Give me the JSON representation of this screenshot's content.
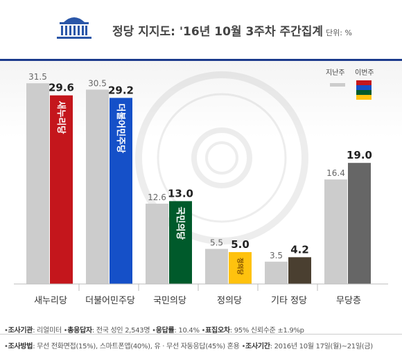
{
  "header": {
    "title": "정당 지지도: '16년 10월 3주차 주간집계",
    "unit": "단위: %",
    "logo_icon": "national-assembly-icon"
  },
  "watermark_icon": "national-assembly-seal-icon",
  "legend": {
    "previous_label": "지난주",
    "current_label": "이번주",
    "previous_color": "#cccccc",
    "current_colors": [
      "#c4161c",
      "#1550c8",
      "#005a2b",
      "#ffc20e",
      "#4a3f30",
      "#666666"
    ]
  },
  "chart_data": {
    "type": "bar",
    "title": "정당 지지도: '16년 10월 3주차 주간집계",
    "unit": "단위: %",
    "categories": [
      "새누리당",
      "더불어민주당",
      "국민의당",
      "정의당",
      "기타 정당",
      "무당층"
    ],
    "series": [
      {
        "name": "지난주",
        "values": [
          31.5,
          30.5,
          12.6,
          5.5,
          3.5,
          16.4
        ],
        "color": "#cccccc"
      },
      {
        "name": "이번주",
        "values": [
          29.6,
          29.2,
          13.0,
          5.0,
          4.2,
          19.0
        ],
        "colors": [
          "#c4161c",
          "#1550c8",
          "#005a2b",
          "#ffc20e",
          "#4a3f30",
          "#666666"
        ]
      }
    ],
    "bar_logos": [
      "새누리당",
      "더불어민주당",
      "국민의당",
      "정의당",
      "",
      ""
    ],
    "ylim": [
      0,
      35
    ],
    "grid": false,
    "legend_position": "top-right"
  },
  "footer": {
    "line1": [
      {
        "label": "조사기관",
        "value": ": 리얼미터"
      },
      {
        "label": "총응답자",
        "value": ": 전국 성인 2,543명"
      },
      {
        "label": "응답률",
        "value": ": 10.4%"
      },
      {
        "label": "표집오차",
        "value": ": 95% 신뢰수준 ±1.9%p"
      }
    ],
    "line2": [
      {
        "label": "조사방법",
        "value": ": 무선 전화면접(15%), 스마트폰앱(40%), 유 · 무선 자동응답(45%) 혼용"
      },
      {
        "label": "조사기간",
        "value": ": 2016년 10월 17일(월)~21일(금)"
      }
    ]
  }
}
